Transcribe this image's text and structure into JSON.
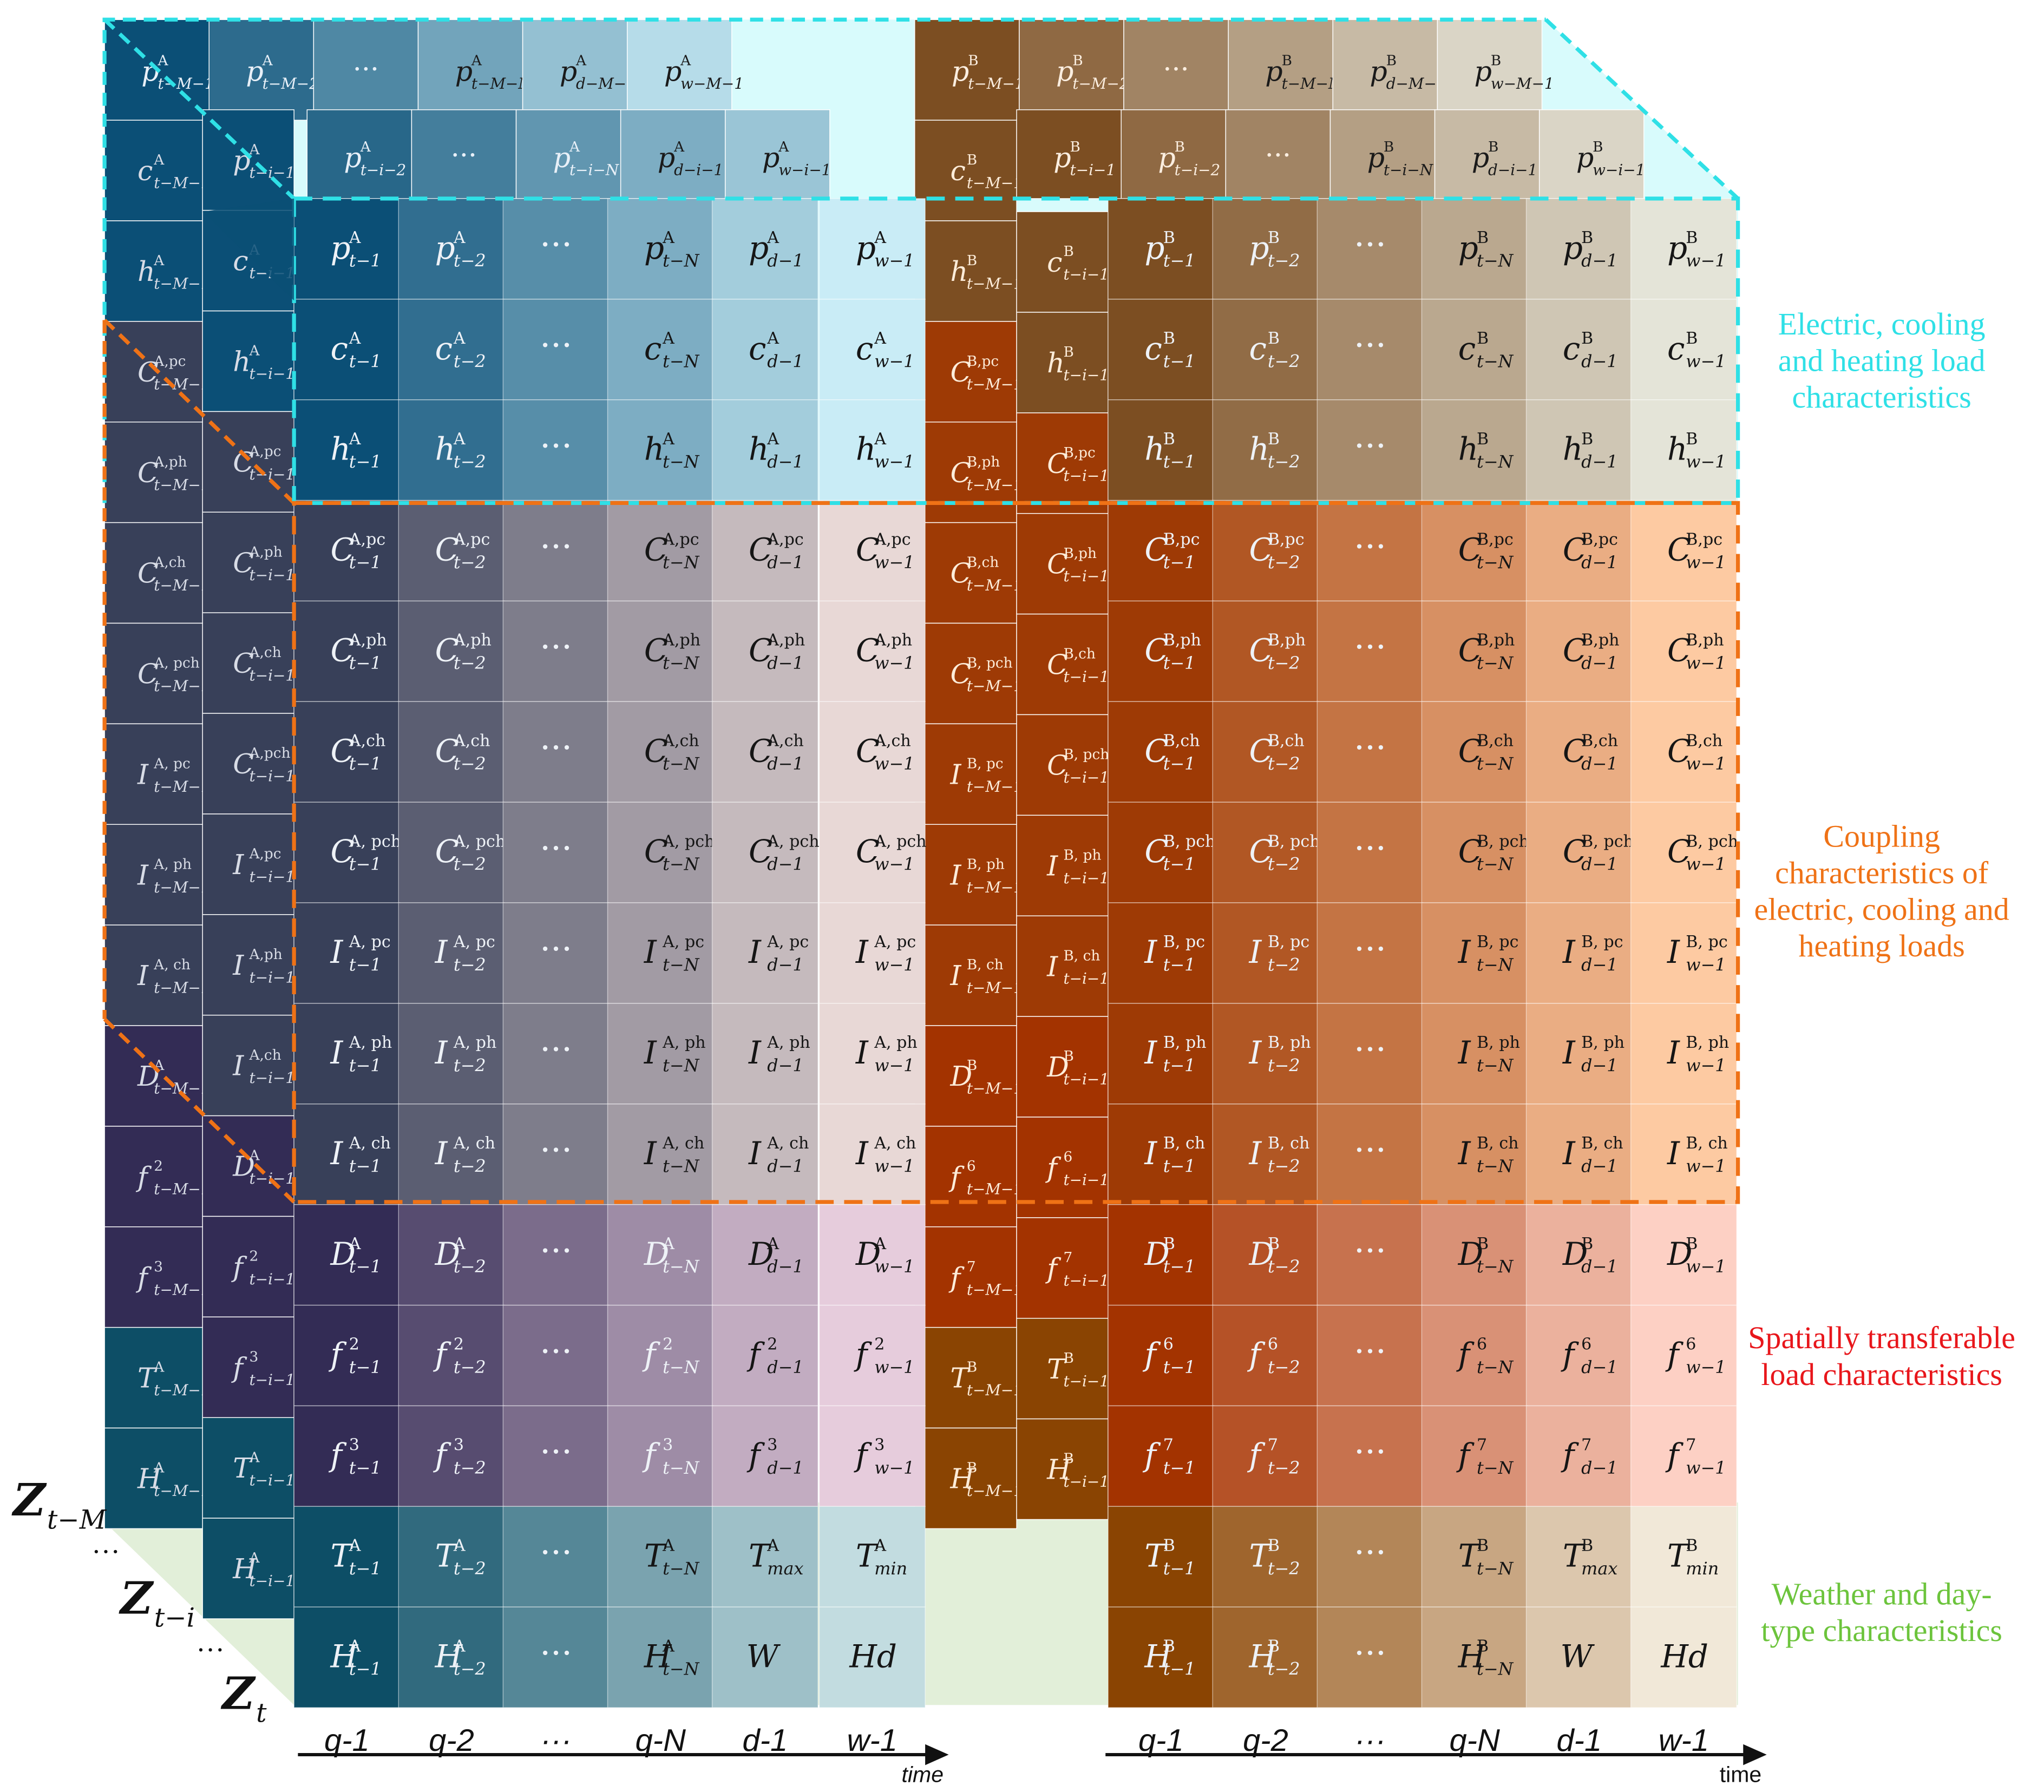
{
  "colors": {
    "electric": "#2fe0e6",
    "coupling": "#ef7216",
    "spatial": "#e8161b",
    "weather": "#6cc43c",
    "electric_region_bg": "#d8fbfc",
    "weather_region_bg": "#e2efd9"
  },
  "labels": {
    "electric": [
      "Electric,  cooling",
      "and heating load",
      "characteristics"
    ],
    "coupling": [
      "Coupling",
      "characteristics of",
      "electric,  cooling and",
      "heating loads"
    ],
    "spatial": [
      "Spatially transferable",
      "load characteristics"
    ],
    "weather": [
      "Weather and day-",
      "type characteristics"
    ]
  },
  "axis": {
    "ticks_A": [
      "q-1",
      "q-2",
      "···",
      "q-N",
      "d-1",
      "w-1"
    ],
    "ticks_B": [
      "q-1",
      "q-2",
      "···",
      "q-N",
      "d-1",
      "w-1"
    ],
    "time_A": "time",
    "time_B": "time"
  },
  "z_labels": [
    {
      "base": "Z",
      "sub": "t−M"
    },
    {
      "base": "Z",
      "sub": "t−i"
    },
    {
      "base": "Z",
      "sub": "t"
    }
  ],
  "z_dots": [
    "···",
    "···"
  ],
  "front": {
    "rows": [
      {
        "b": "p",
        "s": "A",
        "u": "",
        "base": "#0b4f76",
        "e": "#c9ecf6"
      },
      {
        "b": "c",
        "s": "A",
        "u": "",
        "base": "#0b4f76",
        "e": "#c9ecf6"
      },
      {
        "b": "h",
        "s": "A",
        "u": "",
        "base": "#0b4f76",
        "e": "#c9ecf6"
      },
      {
        "b": "C",
        "s": "A,",
        "u": "pc",
        "base": "#384059",
        "e": "#e8d8d6"
      },
      {
        "b": "C",
        "s": "A,",
        "u": "ph",
        "base": "#384059",
        "e": "#e8d8d6"
      },
      {
        "b": "C",
        "s": "A,",
        "u": "ch",
        "base": "#384059",
        "e": "#e8d8d6"
      },
      {
        "b": "C",
        "s": "A, ",
        "u": "pch",
        "base": "#384059",
        "e": "#e8d8d6"
      },
      {
        "b": "I",
        "s": "A, ",
        "u": "pc",
        "base": "#384059",
        "e": "#e8d8d6"
      },
      {
        "b": "I",
        "s": "A, ",
        "u": "ph",
        "base": "#384059",
        "e": "#e8d8d6"
      },
      {
        "b": "I",
        "s": "A, ",
        "u": "ch",
        "base": "#384059",
        "e": "#e8d8d6"
      },
      {
        "b": "D",
        "s": "A",
        "u": "",
        "base": "#332c55",
        "e": "#e6ccdc"
      },
      {
        "b": "f",
        "s": "2",
        "u": "",
        "base": "#332c55",
        "e": "#e6ccdc"
      },
      {
        "b": "f",
        "s": "3",
        "u": "",
        "base": "#332c55",
        "e": "#e6ccdc"
      },
      {
        "b": "T",
        "s": "A",
        "u": "",
        "base": "#0d4e66",
        "e": "#c2dce0",
        "k": "weatherA1"
      },
      {
        "b": "H",
        "s": "A",
        "u": "",
        "base": "#0d4e66",
        "e": "#c2dce0",
        "k": "weatherA2"
      }
    ],
    "rowsB": [
      {
        "b": "p",
        "s": "B",
        "u": "",
        "base": "#7c4e22",
        "e": "#e4e4d8"
      },
      {
        "b": "c",
        "s": "B",
        "u": "",
        "base": "#7c4e22",
        "e": "#e4e4d8"
      },
      {
        "b": "h",
        "s": "B",
        "u": "",
        "base": "#7c4e22",
        "e": "#e4e4d8"
      },
      {
        "b": "C",
        "s": "B,",
        "u": "pc",
        "base": "#9e3a05",
        "e": "#fdcaa2"
      },
      {
        "b": "C",
        "s": "B,",
        "u": "ph",
        "base": "#9e3a05",
        "e": "#fdcaa2"
      },
      {
        "b": "C",
        "s": "B,",
        "u": "ch",
        "base": "#9e3a05",
        "e": "#fdcaa2"
      },
      {
        "b": "C",
        "s": "B, ",
        "u": "pch",
        "base": "#9e3a05",
        "e": "#fdcaa2"
      },
      {
        "b": "I",
        "s": "B, ",
        "u": "pc",
        "base": "#9e3a05",
        "e": "#fdcaa2"
      },
      {
        "b": "I",
        "s": "B, ",
        "u": "ph",
        "base": "#9e3a05",
        "e": "#fdcaa2"
      },
      {
        "b": "I",
        "s": "B, ",
        "u": "ch",
        "base": "#9e3a05",
        "e": "#fdcaa2"
      },
      {
        "b": "D",
        "s": "B",
        "u": "",
        "base": "#a33300",
        "e": "#fdd0c4"
      },
      {
        "b": "f",
        "s": "6",
        "u": "",
        "base": "#a33300",
        "e": "#fdd0c4"
      },
      {
        "b": "f",
        "s": "7",
        "u": "",
        "base": "#a33300",
        "e": "#fdd0c4"
      },
      {
        "b": "T",
        "s": "B",
        "u": "",
        "base": "#8a4402",
        "e": "#f1e8d8",
        "k": "weatherB1"
      },
      {
        "b": "H",
        "s": "B",
        "u": "",
        "base": "#8a4402",
        "e": "#f1e8d8",
        "k": "weatherB2"
      }
    ],
    "subs": [
      "t−1",
      "t−2",
      "",
      "t−N",
      "d−1",
      "w−1"
    ],
    "weather_extra": {
      "weatherA1": [
        {
          "b": "T",
          "s": "A",
          "sub": "max"
        },
        {
          "b": "T",
          "s": "A",
          "sub": "min"
        }
      ],
      "weatherA2": [
        {
          "b": "W",
          "s": "",
          "sub": ""
        },
        {
          "b": "Hd",
          "s": "",
          "sub": ""
        }
      ],
      "weatherB1": [
        {
          "b": "T",
          "s": "B",
          "sub": "max"
        },
        {
          "b": "T",
          "s": "B",
          "sub": "min"
        }
      ],
      "weatherB2": [
        {
          "b": "W",
          "s": "",
          "sub": ""
        },
        {
          "b": "Hd",
          "s": "",
          "sub": ""
        }
      ]
    }
  },
  "layer_i": {
    "sub": "t−i−1",
    "colA": [
      {
        "b": "p",
        "s": "A",
        "u": ""
      },
      {
        "b": "c",
        "s": "A",
        "u": ""
      },
      {
        "b": "h",
        "s": "A",
        "u": ""
      },
      {
        "b": "C",
        "s": "A,",
        "u": "pc"
      },
      {
        "b": "C",
        "s": "A,",
        "u": "ph"
      },
      {
        "b": "C",
        "s": "A,",
        "u": "ch"
      },
      {
        "b": "C",
        "s": "A,",
        "u": "pch"
      },
      {
        "b": "I",
        "s": "A,",
        "u": "pc"
      },
      {
        "b": "I",
        "s": "A,",
        "u": "ph"
      },
      {
        "b": "I",
        "s": "A,",
        "u": "ch"
      },
      {
        "b": "D",
        "s": "A",
        "u": ""
      },
      {
        "b": "f",
        "s": "2",
        "u": ""
      },
      {
        "b": "f",
        "s": "3",
        "u": ""
      },
      {
        "b": "T",
        "s": "A",
        "u": ""
      },
      {
        "b": "H",
        "s": "A",
        "u": ""
      }
    ],
    "colB": [
      {
        "b": "c",
        "s": "B",
        "u": ""
      },
      {
        "b": "h",
        "s": "B",
        "u": ""
      },
      {
        "b": "C",
        "s": "B,",
        "u": "pc"
      },
      {
        "b": "C",
        "s": "B,",
        "u": "ph"
      },
      {
        "b": "C",
        "s": "B,",
        "u": "ch"
      },
      {
        "b": "C",
        "s": "B, ",
        "u": "pch"
      },
      {
        "b": "I",
        "s": "B, ",
        "u": "ph"
      },
      {
        "b": "I",
        "s": "B, ",
        "u": "ch"
      },
      {
        "b": "D",
        "s": "B",
        "u": ""
      },
      {
        "b": "f",
        "s": "6",
        "u": ""
      },
      {
        "b": "f",
        "s": "7",
        "u": ""
      },
      {
        "b": "T",
        "s": "B",
        "u": ""
      },
      {
        "b": "H",
        "s": "B",
        "u": ""
      }
    ],
    "top_row_A": [
      {
        "b": "p",
        "s": "A",
        "sub": "t−i−2"
      },
      {
        "b": "···",
        "s": "",
        "sub": ""
      },
      {
        "b": "p",
        "s": "A",
        "sub": "t−i−N"
      },
      {
        "b": "p",
        "s": "A",
        "sub": "d−i−1"
      },
      {
        "b": "p",
        "s": "A",
        "sub": "w−i−1"
      }
    ],
    "top_row_B": [
      {
        "b": "p",
        "s": "B",
        "sub": "t−i−1"
      },
      {
        "b": "p",
        "s": "B",
        "sub": "t−i−2"
      },
      {
        "b": "···",
        "s": "",
        "sub": ""
      },
      {
        "b": "p",
        "s": "B",
        "sub": "t−i−N"
      },
      {
        "b": "p",
        "s": "B",
        "sub": "d−i−1"
      },
      {
        "b": "p",
        "s": "B",
        "sub": "w−i−1"
      }
    ]
  },
  "layer_m": {
    "sub": "t−M−1",
    "colA": [
      {
        "b": "c",
        "s": "A",
        "u": ""
      },
      {
        "b": "h",
        "s": "A",
        "u": ""
      },
      {
        "b": "C",
        "s": "A,",
        "u": "pc"
      },
      {
        "b": "C",
        "s": "A,",
        "u": "ph"
      },
      {
        "b": "C",
        "s": "A,",
        "u": "ch"
      },
      {
        "b": "C",
        "s": "A, ",
        "u": "pch"
      },
      {
        "b": "I",
        "s": "A, ",
        "u": "pc"
      },
      {
        "b": "I",
        "s": "A, ",
        "u": "ph"
      },
      {
        "b": "I",
        "s": "A, ",
        "u": "ch"
      },
      {
        "b": "D",
        "s": "A",
        "u": ""
      },
      {
        "b": "f",
        "s": "2",
        "u": ""
      },
      {
        "b": "f",
        "s": "3",
        "u": ""
      },
      {
        "b": "T",
        "s": "A",
        "u": ""
      },
      {
        "b": "H",
        "s": "A",
        "u": ""
      }
    ],
    "colB": [
      {
        "b": "c",
        "s": "B",
        "u": ""
      },
      {
        "b": "h",
        "s": "B",
        "u": ""
      },
      {
        "b": "C",
        "s": "B,",
        "u": "pc"
      },
      {
        "b": "C",
        "s": "B,",
        "u": "ph"
      },
      {
        "b": "C",
        "s": "B,",
        "u": "ch"
      },
      {
        "b": "C",
        "s": "B, ",
        "u": "pch"
      },
      {
        "b": "I",
        "s": "B, ",
        "u": "pc"
      },
      {
        "b": "I",
        "s": "B, ",
        "u": "ph"
      },
      {
        "b": "I",
        "s": "B, ",
        "u": "ch"
      },
      {
        "b": "D",
        "s": "B",
        "u": ""
      },
      {
        "b": "f",
        "s": "6",
        "u": ""
      },
      {
        "b": "f",
        "s": "7",
        "u": ""
      },
      {
        "b": "T",
        "s": "B",
        "u": ""
      },
      {
        "b": "H",
        "s": "B",
        "u": ""
      }
    ],
    "top_row_A": [
      {
        "b": "p",
        "s": "A",
        "sub": "t−M−1"
      },
      {
        "b": "p",
        "s": "A",
        "sub": "t−M−2"
      },
      {
        "b": "···",
        "s": "",
        "sub": ""
      },
      {
        "b": "p",
        "s": "A",
        "sub": "t−M−N"
      },
      {
        "b": "p",
        "s": "A",
        "sub": "d−M−1"
      },
      {
        "b": "p",
        "s": "A",
        "sub": "w−M−1"
      }
    ],
    "top_row_B": [
      {
        "b": "p",
        "s": "B",
        "sub": "t−M−1"
      },
      {
        "b": "p",
        "s": "B",
        "sub": "t−M−2"
      },
      {
        "b": "···",
        "s": "",
        "sub": ""
      },
      {
        "b": "p",
        "s": "B",
        "sub": "t−M−N"
      },
      {
        "b": "p",
        "s": "B",
        "sub": "d−M−1"
      },
      {
        "b": "p",
        "s": "B",
        "sub": "w−M−1"
      }
    ]
  }
}
